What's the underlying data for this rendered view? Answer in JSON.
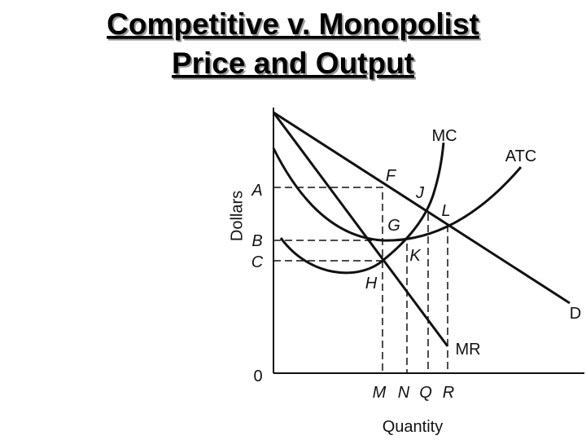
{
  "title": {
    "line1": "Competitive v. Monopolist",
    "line2": "Price and Output"
  },
  "axes": {
    "y_label": "Dollars",
    "x_label": "Quantity",
    "origin": "0"
  },
  "price_labels": {
    "A": "A",
    "B": "B",
    "C": "C"
  },
  "quantity_labels": {
    "M": "M",
    "N": "N",
    "Q": "Q",
    "R": "R"
  },
  "point_labels": {
    "F": "F",
    "J": "J",
    "L": "L",
    "G": "G",
    "K": "K",
    "H": "H"
  },
  "curve_labels": {
    "MC": "MC",
    "ATC": "ATC",
    "D": "D",
    "MR": "MR"
  }
}
